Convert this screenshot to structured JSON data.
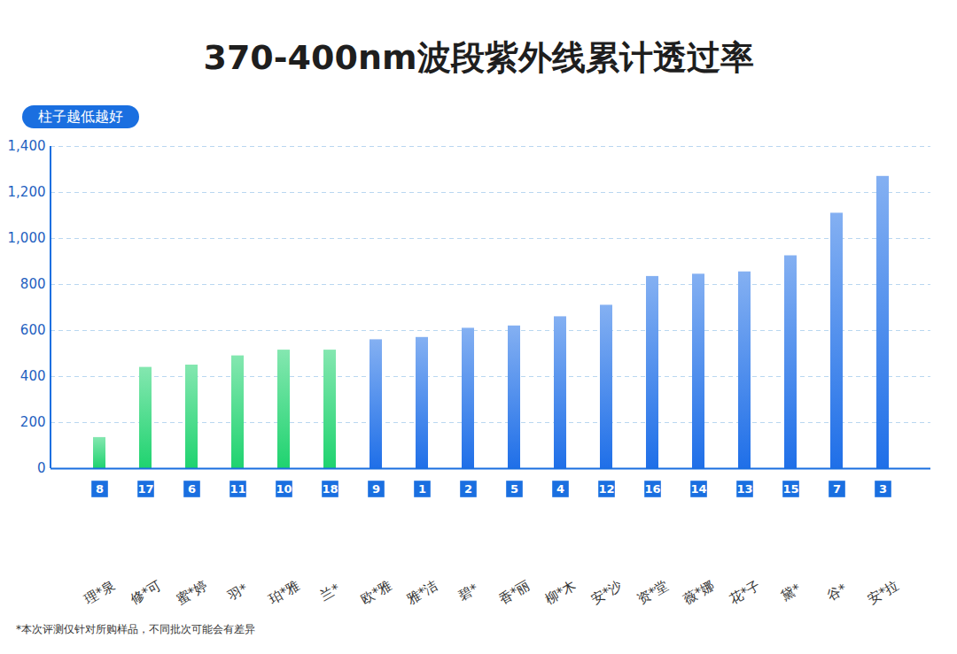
{
  "chart_data": {
    "type": "bar",
    "title": "370-400nm波段紫外线累计透过率",
    "subtitle": "柱子越低越好",
    "caption": "*本次评测仅针对所购样品，不同批次可能会有差异",
    "categories": [
      "理*泉",
      "修*可",
      "蜜*婷",
      "羽*",
      "珀*雅",
      "兰*",
      "欧*雅",
      "雅*洁",
      "碧*",
      "香*丽",
      "柳*木",
      "安*沙",
      "资*堂",
      "薇*娜",
      "花*子",
      "黛*",
      "谷*",
      "安*拉"
    ],
    "ranks": [
      8,
      17,
      6,
      11,
      10,
      18,
      9,
      1,
      2,
      5,
      4,
      12,
      16,
      14,
      13,
      15,
      7,
      3
    ],
    "values": [
      135,
      440,
      450,
      490,
      515,
      515,
      560,
      570,
      610,
      620,
      660,
      710,
      835,
      845,
      855,
      925,
      1110,
      1270
    ],
    "colors": [
      "#1fd36f",
      "#1fd36f",
      "#1fd36f",
      "#1fd36f",
      "#1fd36f",
      "#1fd36f",
      "#1f6fe8",
      "#1f6fe8",
      "#1f6fe8",
      "#1f6fe8",
      "#1f6fe8",
      "#1f6fe8",
      "#1f6fe8",
      "#1f6fe8",
      "#1f6fe8",
      "#1f6fe8",
      "#1f6fe8",
      "#1f6fe8"
    ],
    "ylim": [
      0,
      1400
    ],
    "yticks": [
      0,
      200,
      400,
      600,
      800,
      1000,
      1200,
      1400
    ],
    "grid": true
  }
}
